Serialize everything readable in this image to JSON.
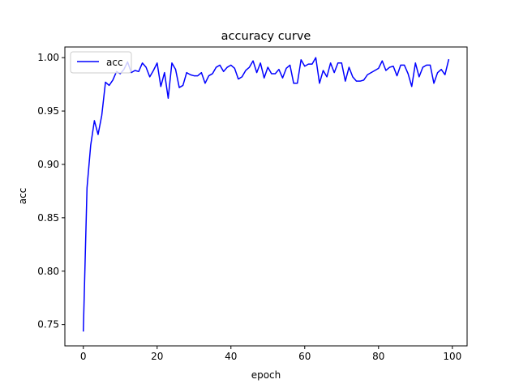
{
  "chart_data": {
    "type": "line",
    "title": "accuracy curve",
    "xlabel": "epoch",
    "ylabel": "acc",
    "xlim": [
      -5,
      104
    ],
    "ylim": [
      0.73,
      1.01
    ],
    "xticks": [
      0,
      20,
      40,
      60,
      80,
      100
    ],
    "yticks": [
      0.75,
      0.8,
      0.85,
      0.9,
      0.95,
      1.0
    ],
    "grid": false,
    "legend": {
      "position": "top-left",
      "entries": [
        "acc"
      ]
    },
    "series": [
      {
        "name": "acc",
        "color": "#0000ff",
        "x": [
          0,
          1,
          2,
          3,
          4,
          5,
          6,
          7,
          8,
          9,
          10,
          11,
          12,
          13,
          14,
          15,
          16,
          17,
          18,
          19,
          20,
          21,
          22,
          23,
          24,
          25,
          26,
          27,
          28,
          29,
          30,
          31,
          32,
          33,
          34,
          35,
          36,
          37,
          38,
          39,
          40,
          41,
          42,
          43,
          44,
          45,
          46,
          47,
          48,
          49,
          50,
          51,
          52,
          53,
          54,
          55,
          56,
          57,
          58,
          59,
          60,
          61,
          62,
          63,
          64,
          65,
          66,
          67,
          68,
          69,
          70,
          71,
          72,
          73,
          74,
          75,
          76,
          77,
          78,
          79,
          80,
          81,
          82,
          83,
          84,
          85,
          86,
          87,
          88,
          89,
          90,
          91,
          92,
          93,
          94,
          95,
          96,
          97,
          98,
          99
        ],
        "values": [
          0.744,
          0.878,
          0.918,
          0.941,
          0.928,
          0.946,
          0.977,
          0.974,
          0.979,
          0.987,
          0.985,
          0.989,
          0.996,
          0.986,
          0.988,
          0.987,
          0.995,
          0.991,
          0.982,
          0.988,
          0.995,
          0.973,
          0.986,
          0.962,
          0.995,
          0.989,
          0.972,
          0.974,
          0.986,
          0.984,
          0.983,
          0.983,
          0.986,
          0.976,
          0.983,
          0.985,
          0.991,
          0.993,
          0.987,
          0.991,
          0.993,
          0.99,
          0.98,
          0.982,
          0.988,
          0.991,
          0.997,
          0.986,
          0.995,
          0.981,
          0.991,
          0.985,
          0.985,
          0.989,
          0.981,
          0.99,
          0.993,
          0.976,
          0.976,
          0.998,
          0.992,
          0.994,
          0.994,
          1.0,
          0.976,
          0.988,
          0.982,
          0.995,
          0.986,
          0.995,
          0.995,
          0.978,
          0.991,
          0.982,
          0.978,
          0.978,
          0.979,
          0.984,
          0.986,
          0.988,
          0.99,
          0.997,
          0.988,
          0.991,
          0.992,
          0.983,
          0.993,
          0.993,
          0.985,
          0.973,
          0.995,
          0.982,
          0.991,
          0.993,
          0.993,
          0.976,
          0.986,
          0.989,
          0.984,
          0.998
        ]
      }
    ]
  }
}
